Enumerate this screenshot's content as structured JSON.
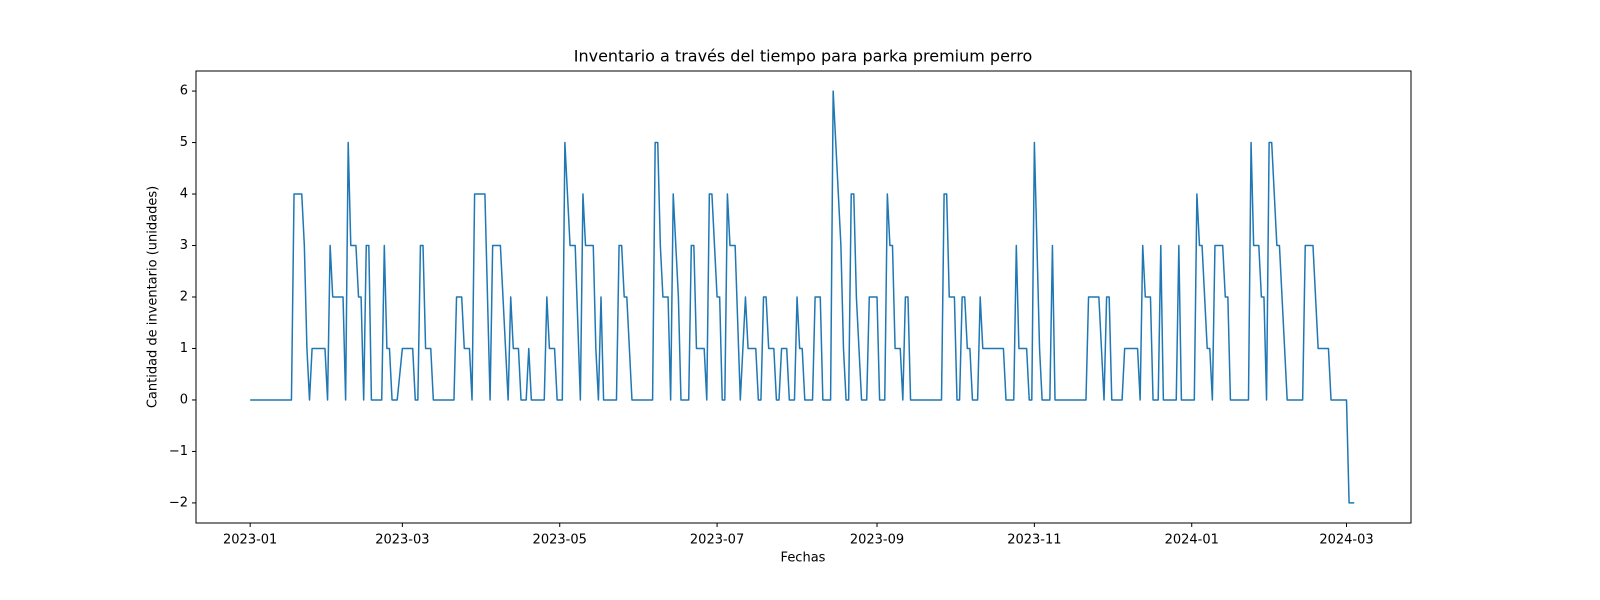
{
  "chart_data": {
    "type": "line",
    "title": "Inventario a través del tiempo para parka premium perro",
    "xlabel": "Fechas",
    "ylabel": "Cantidad de inventario (unidades)",
    "color": "#1f77b4",
    "xlim": [
      "2022-12-11",
      "2024-03-26"
    ],
    "ylim": [
      -2.39,
      6.39
    ],
    "xticks": [
      {
        "value": "2023-01-01",
        "label": "2023-01"
      },
      {
        "value": "2023-03-01",
        "label": "2023-03"
      },
      {
        "value": "2023-05-01",
        "label": "2023-05"
      },
      {
        "value": "2023-07-01",
        "label": "2023-07"
      },
      {
        "value": "2023-09-01",
        "label": "2023-09"
      },
      {
        "value": "2023-11-01",
        "label": "2023-11"
      },
      {
        "value": "2024-01-01",
        "label": "2024-01"
      },
      {
        "value": "2024-03-01",
        "label": "2024-03"
      }
    ],
    "yticks": [
      {
        "value": -2,
        "label": "−2"
      },
      {
        "value": -1,
        "label": "−1"
      },
      0,
      1,
      2,
      3,
      4,
      5,
      6
    ],
    "x": [
      "2023-01-01",
      "2023-01-17",
      "2023-01-18",
      "2023-01-21",
      "2023-01-22",
      "2023-01-23",
      "2023-01-24",
      "2023-01-25",
      "2023-01-30",
      "2023-01-31",
      "2023-02-01",
      "2023-02-02",
      "2023-02-06",
      "2023-02-07",
      "2023-02-08",
      "2023-02-09",
      "2023-02-11",
      "2023-02-12",
      "2023-02-13",
      "2023-02-14",
      "2023-02-15",
      "2023-02-16",
      "2023-02-17",
      "2023-02-21",
      "2023-02-22",
      "2023-02-23",
      "2023-02-24",
      "2023-02-25",
      "2023-02-27",
      "2023-03-01",
      "2023-03-05",
      "2023-03-06",
      "2023-03-07",
      "2023-03-08",
      "2023-03-09",
      "2023-03-10",
      "2023-03-12",
      "2023-03-13",
      "2023-03-21",
      "2023-03-22",
      "2023-03-24",
      "2023-03-25",
      "2023-03-27",
      "2023-03-28",
      "2023-03-29",
      "2023-04-02",
      "2023-04-04",
      "2023-04-05",
      "2023-04-08",
      "2023-04-11",
      "2023-04-12",
      "2023-04-13",
      "2023-04-15",
      "2023-04-16",
      "2023-04-18",
      "2023-04-19",
      "2023-04-20",
      "2023-04-25",
      "2023-04-26",
      "2023-04-27",
      "2023-04-29",
      "2023-04-30",
      "2023-05-02",
      "2023-05-03",
      "2023-05-05",
      "2023-05-07",
      "2023-05-09",
      "2023-05-10",
      "2023-05-11",
      "2023-05-14",
      "2023-05-15",
      "2023-05-16",
      "2023-05-17",
      "2023-05-18",
      "2023-05-23",
      "2023-05-24",
      "2023-05-25",
      "2023-05-26",
      "2023-05-27",
      "2023-05-29",
      "2023-06-06",
      "2023-06-07",
      "2023-06-08",
      "2023-06-09",
      "2023-06-10",
      "2023-06-12",
      "2023-06-13",
      "2023-06-14",
      "2023-06-16",
      "2023-06-17",
      "2023-06-20",
      "2023-06-21",
      "2023-06-22",
      "2023-06-23",
      "2023-06-26",
      "2023-06-27",
      "2023-06-28",
      "2023-06-29",
      "2023-07-01",
      "2023-07-02",
      "2023-07-03",
      "2023-07-04",
      "2023-07-05",
      "2023-07-06",
      "2023-07-08",
      "2023-07-10",
      "2023-07-12",
      "2023-07-13",
      "2023-07-16",
      "2023-07-17",
      "2023-07-18",
      "2023-07-19",
      "2023-07-20",
      "2023-07-21",
      "2023-07-23",
      "2023-07-24",
      "2023-07-25",
      "2023-07-26",
      "2023-07-28",
      "2023-07-29",
      "2023-07-31",
      "2023-08-01",
      "2023-08-02",
      "2023-08-03",
      "2023-08-04",
      "2023-08-07",
      "2023-08-08",
      "2023-08-10",
      "2023-08-11",
      "2023-08-14",
      "2023-08-15",
      "2023-08-18",
      "2023-08-19",
      "2023-08-20",
      "2023-08-21",
      "2023-08-22",
      "2023-08-23",
      "2023-08-24",
      "2023-08-26",
      "2023-08-28",
      "2023-08-29",
      "2023-09-01",
      "2023-09-02",
      "2023-09-04",
      "2023-09-05",
      "2023-09-06",
      "2023-09-07",
      "2023-09-08",
      "2023-09-10",
      "2023-09-11",
      "2023-09-12",
      "2023-09-13",
      "2023-09-14",
      "2023-09-26",
      "2023-09-27",
      "2023-09-28",
      "2023-09-29",
      "2023-10-01",
      "2023-10-02",
      "2023-10-03",
      "2023-10-04",
      "2023-10-05",
      "2023-10-06",
      "2023-10-07",
      "2023-10-08",
      "2023-10-10",
      "2023-10-11",
      "2023-10-12",
      "2023-10-20",
      "2023-10-21",
      "2023-10-24",
      "2023-10-25",
      "2023-10-26",
      "2023-10-29",
      "2023-10-30",
      "2023-10-31",
      "2023-11-01",
      "2023-11-03",
      "2023-11-04",
      "2023-11-07",
      "2023-11-08",
      "2023-11-09",
      "2023-11-21",
      "2023-11-22",
      "2023-11-26",
      "2023-11-28",
      "2023-11-29",
      "2023-11-30",
      "2023-12-01",
      "2023-12-05",
      "2023-12-06",
      "2023-12-11",
      "2023-12-12",
      "2023-12-13",
      "2023-12-14",
      "2023-12-16",
      "2023-12-17",
      "2023-12-19",
      "2023-12-20",
      "2023-12-21",
      "2023-12-26",
      "2023-12-27",
      "2023-12-28",
      "2024-01-02",
      "2024-01-03",
      "2024-01-04",
      "2024-01-05",
      "2024-01-07",
      "2024-01-08",
      "2024-01-09",
      "2024-01-10",
      "2024-01-13",
      "2024-01-14",
      "2024-01-15",
      "2024-01-16",
      "2024-01-23",
      "2024-01-24",
      "2024-01-25",
      "2024-01-27",
      "2024-01-28",
      "2024-01-29",
      "2024-01-30",
      "2024-01-31",
      "2024-02-01",
      "2024-02-03",
      "2024-02-04",
      "2024-02-07",
      "2024-02-13",
      "2024-02-14",
      "2024-02-17",
      "2024-02-19",
      "2024-02-23",
      "2024-02-24",
      "2024-03-01",
      "2024-03-02",
      "2024-03-04"
    ],
    "values": [
      0,
      0,
      4,
      4,
      3,
      1,
      0,
      1,
      1,
      0,
      3,
      2,
      2,
      0,
      5,
      3,
      3,
      2,
      2,
      0,
      3,
      3,
      0,
      0,
      3,
      1,
      1,
      0,
      0,
      1,
      1,
      0,
      0,
      3,
      3,
      1,
      1,
      0,
      0,
      2,
      2,
      1,
      1,
      0,
      4,
      4,
      0,
      3,
      3,
      0,
      2,
      1,
      1,
      0,
      0,
      1,
      0,
      0,
      2,
      1,
      1,
      0,
      0,
      5,
      3,
      3,
      0,
      4,
      3,
      3,
      1,
      0,
      2,
      0,
      0,
      3,
      3,
      2,
      2,
      0,
      0,
      5,
      5,
      3,
      2,
      2,
      0,
      4,
      2,
      0,
      0,
      3,
      3,
      1,
      1,
      0,
      4,
      4,
      2,
      2,
      0,
      0,
      4,
      3,
      3,
      0,
      2,
      1,
      1,
      0,
      0,
      2,
      2,
      1,
      1,
      0,
      0,
      1,
      1,
      0,
      0,
      2,
      1,
      1,
      0,
      0,
      2,
      2,
      0,
      0,
      6,
      3,
      1,
      0,
      0,
      4,
      4,
      2,
      0,
      0,
      2,
      2,
      0,
      0,
      4,
      3,
      3,
      1,
      1,
      0,
      2,
      2,
      0,
      0,
      4,
      4,
      2,
      2,
      0,
      0,
      2,
      2,
      1,
      1,
      0,
      0,
      2,
      1,
      1,
      0,
      0,
      3,
      1,
      1,
      0,
      0,
      5,
      1,
      0,
      0,
      3,
      0,
      0,
      2,
      2,
      0,
      2,
      2,
      0,
      0,
      1,
      1,
      0,
      3,
      2,
      2,
      0,
      0,
      3,
      0,
      0,
      3,
      0,
      0,
      4,
      3,
      3,
      1,
      1,
      0,
      3,
      3,
      2,
      2,
      0,
      0,
      5,
      3,
      3,
      2,
      2,
      0,
      5,
      5,
      3,
      3,
      0,
      0,
      3,
      3,
      1,
      1,
      0,
      0,
      -2,
      -2
    ]
  }
}
